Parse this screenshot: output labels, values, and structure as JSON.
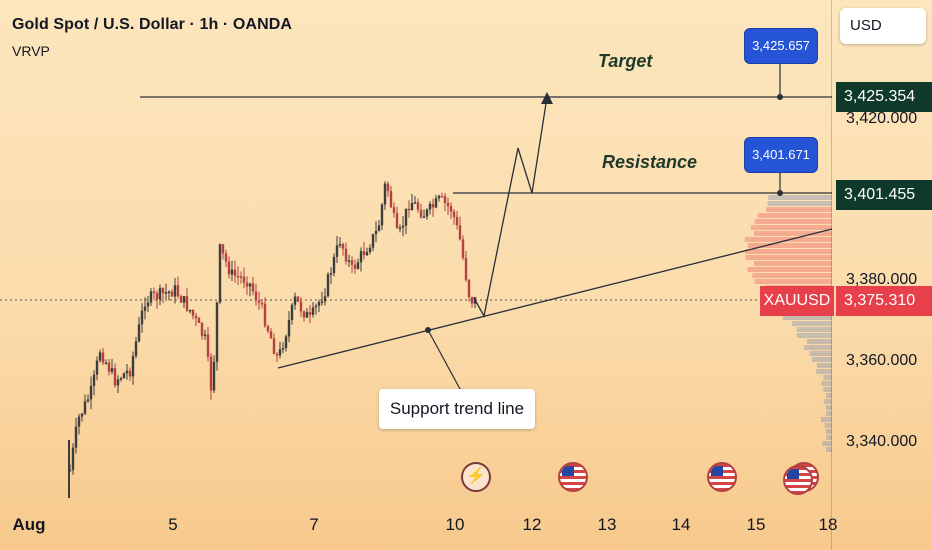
{
  "header": {
    "title": "Gold Spot / U.S. Dollar · 1h · OANDA",
    "indicator": "VRVP"
  },
  "currency_button": "USD",
  "symbol": "XAUUSD",
  "price_axis": {
    "labels": [
      "3,420.000",
      "3,380.000",
      "3,360.000",
      "3,340.000"
    ]
  },
  "price_tags": {
    "target_line": "3,425.354",
    "resistance_line": "3,401.455",
    "current": "3,375.310"
  },
  "bubbles": {
    "target": "3,425.657",
    "resistance": "3,401.671"
  },
  "annotations": {
    "target": "Target",
    "resistance": "Resistance",
    "support": "Support trend line"
  },
  "time_axis": {
    "labels": [
      "Aug",
      "5",
      "7",
      "10",
      "12",
      "13",
      "14",
      "15",
      "18"
    ]
  },
  "colors": {
    "up": "#3d3d3d",
    "down": "#b3413f",
    "tag_dark": "#0f3a2b",
    "tag_red": "#e8404a",
    "bubble": "#2554d6"
  },
  "event_icons": [
    "flash-icon",
    "us-flag-icon",
    "us-flag-icon",
    "us-flag-icon"
  ]
}
